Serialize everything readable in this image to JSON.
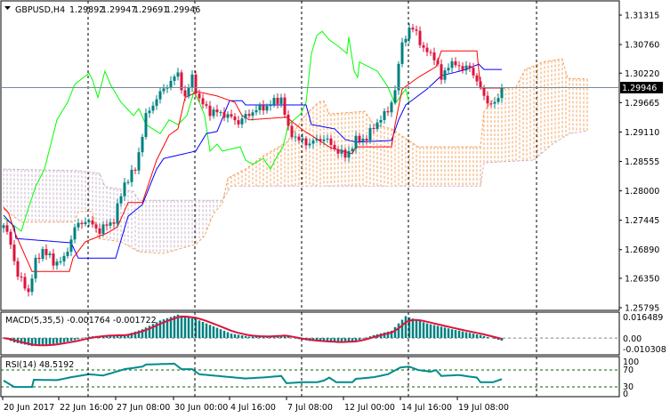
{
  "header": {
    "symbol": "GBPUSD,H4",
    "open": "1.29892",
    "high": "1.29947",
    "low": "1.29691",
    "close": "1.29946",
    "menu_icon": "triangle-down-icon"
  },
  "price_axis": {
    "labels": [
      "1.31315",
      "1.30760",
      "1.30220",
      "1.29665",
      "1.29110",
      "1.28555",
      "1.28000",
      "1.27445",
      "1.26890",
      "1.26350",
      "1.25795"
    ],
    "current": "1.29946"
  },
  "macd": {
    "label": "MACD(5,35,5) -0.001764 -0.001722",
    "axis": [
      "0.016489",
      "0.00",
      "-0.010308"
    ]
  },
  "rsi": {
    "label": "RSI(14) 48.5192",
    "axis": [
      "100",
      "70",
      "30",
      "0"
    ]
  },
  "time_axis": [
    "20 Jun 2017",
    "22 Jun 16:00",
    "27 Jun 08:00",
    "30 Jun 00:00",
    "4 Jul 16:00",
    "7 Jul 08:00",
    "12 Jul 00:00",
    "14 Jul 16:00",
    "19 Jul 08:00"
  ],
  "colors": {
    "bull": "#008080",
    "bear": "#dc143c",
    "tenkan": "#ff0000",
    "kijun": "#0000ff",
    "chikou": "#00ff00",
    "spanA": "#f4a460",
    "spanB": "#d8bfd8",
    "macd_signal": "#dc143c",
    "rsi": "#008b8b",
    "level": "#006400"
  },
  "chart_data": {
    "type": "candlestick",
    "symbol": "GBPUSD",
    "timeframe": "H4",
    "ylim": [
      1.25795,
      1.31315
    ],
    "bars": 141,
    "close_keypoints": [
      [
        0,
        1.2735
      ],
      [
        2,
        1.27
      ],
      [
        4,
        1.264
      ],
      [
        7,
        1.261
      ],
      [
        9,
        1.2665
      ],
      [
        11,
        1.269
      ],
      [
        14,
        1.2665
      ],
      [
        17,
        1.267
      ],
      [
        20,
        1.273
      ],
      [
        23,
        1.2745
      ],
      [
        27,
        1.2725
      ],
      [
        31,
        1.2745
      ],
      [
        34,
        1.2815
      ],
      [
        37,
        1.284
      ],
      [
        40,
        1.294
      ],
      [
        43,
        1.2975
      ],
      [
        46,
        1.3
      ],
      [
        49,
        1.302
      ],
      [
        51,
        1.2975
      ],
      [
        53,
        1.3015
      ],
      [
        55,
        1.297
      ],
      [
        58,
        1.295
      ],
      [
        62,
        1.2945
      ],
      [
        66,
        1.293
      ],
      [
        70,
        1.295
      ],
      [
        74,
        1.296
      ],
      [
        78,
        1.2975
      ],
      [
        80,
        1.2915
      ],
      [
        83,
        1.2895
      ],
      [
        86,
        1.289
      ],
      [
        90,
        1.29
      ],
      [
        93,
        1.288
      ],
      [
        96,
        1.2865
      ],
      [
        99,
        1.2895
      ],
      [
        102,
        1.29
      ],
      [
        105,
        1.293
      ],
      [
        108,
        1.295
      ],
      [
        110,
        1.299
      ],
      [
        112,
        1.308
      ],
      [
        114,
        1.3105
      ],
      [
        116,
        1.31
      ],
      [
        118,
        1.3065
      ],
      [
        121,
        1.3055
      ],
      [
        123,
        1.301
      ],
      [
        125,
        1.304
      ],
      [
        128,
        1.3035
      ],
      [
        131,
        1.303
      ],
      [
        133,
        1.301
      ],
      [
        135,
        1.2975
      ],
      [
        137,
        1.2965
      ],
      [
        139,
        1.2969
      ],
      [
        140,
        1.29946
      ]
    ],
    "tenkan": [
      [
        0,
        1.2769
      ],
      [
        1.5,
        1.2757
      ],
      [
        3,
        1.2724
      ],
      [
        8,
        1.2648
      ],
      [
        18.5,
        1.2648
      ],
      [
        19.5,
        1.2673
      ],
      [
        23,
        1.2704
      ],
      [
        29,
        1.272
      ],
      [
        32,
        1.2732
      ],
      [
        35,
        1.2778
      ],
      [
        39,
        1.2778
      ],
      [
        43,
        1.2858
      ],
      [
        46.5,
        1.2905
      ],
      [
        49,
        1.2917
      ],
      [
        51,
        1.2976
      ],
      [
        54.5,
        1.2987
      ],
      [
        60,
        1.2979
      ],
      [
        65,
        1.2967
      ],
      [
        67,
        1.2942
      ],
      [
        69,
        1.2934
      ],
      [
        79.5,
        1.2939
      ],
      [
        84,
        1.2915
      ],
      [
        92,
        1.2881
      ],
      [
        98,
        1.287
      ],
      [
        99,
        1.2883
      ],
      [
        109,
        1.2883
      ],
      [
        110,
        1.2925
      ],
      [
        112,
        1.2992
      ],
      [
        116.5,
        1.3014
      ],
      [
        121.5,
        1.3034
      ],
      [
        123,
        1.3064
      ],
      [
        133,
        1.3064
      ],
      [
        134,
        1.2994
      ],
      [
        140,
        1.2994
      ]
    ],
    "kijun": [
      [
        0,
        1.2754
      ],
      [
        3,
        1.2732
      ],
      [
        3.5,
        1.271
      ],
      [
        19,
        1.2702
      ],
      [
        21,
        1.2673
      ],
      [
        31.5,
        1.2673
      ],
      [
        33,
        1.2707
      ],
      [
        35,
        1.2752
      ],
      [
        39,
        1.2774
      ],
      [
        43,
        1.2841
      ],
      [
        45,
        1.2861
      ],
      [
        54,
        1.2875
      ],
      [
        57,
        1.2908
      ],
      [
        60,
        1.2912
      ],
      [
        63.5,
        1.297
      ],
      [
        67,
        1.297
      ],
      [
        68,
        1.2962
      ],
      [
        85,
        1.2962
      ],
      [
        86.5,
        1.2925
      ],
      [
        93,
        1.2917
      ],
      [
        96,
        1.2897
      ],
      [
        99,
        1.2892
      ],
      [
        109,
        1.2895
      ],
      [
        111,
        1.2934
      ],
      [
        113,
        1.2962
      ],
      [
        119,
        1.2992
      ],
      [
        123,
        1.3017
      ],
      [
        130,
        1.3029
      ],
      [
        133.5,
        1.3039
      ],
      [
        135,
        1.3029
      ],
      [
        140,
        1.3029
      ]
    ],
    "chikou": [
      [
        0,
        1.2749
      ],
      [
        5,
        1.2724
      ],
      [
        6.5,
        1.2757
      ],
      [
        9,
        1.2808
      ],
      [
        11.5,
        1.2841
      ],
      [
        15,
        1.2934
      ],
      [
        18,
        1.2967
      ],
      [
        20,
        1.3001
      ],
      [
        24,
        1.3022
      ],
      [
        25,
        1.3009
      ],
      [
        26.5,
        1.2976
      ],
      [
        28.5,
        1.3026
      ],
      [
        30,
        1.3001
      ],
      [
        33,
        1.2967
      ],
      [
        36.5,
        1.2942
      ],
      [
        38,
        1.2955
      ],
      [
        40,
        1.2925
      ],
      [
        44,
        1.2908
      ],
      [
        46.5,
        1.2934
      ],
      [
        49,
        1.2925
      ],
      [
        51.5,
        1.2942
      ],
      [
        53.5,
        1.2987
      ],
      [
        55,
        1.2967
      ],
      [
        56.5,
        1.2942
      ],
      [
        58,
        1.2875
      ],
      [
        60,
        1.2888
      ],
      [
        61.5,
        1.2875
      ],
      [
        66.5,
        1.2883
      ],
      [
        68,
        1.2858
      ],
      [
        70,
        1.285
      ],
      [
        73,
        1.2861
      ],
      [
        75,
        1.2841
      ],
      [
        76.5,
        1.2861
      ],
      [
        78.5,
        1.2883
      ],
      [
        80,
        1.2925
      ],
      [
        83.5,
        1.2945
      ],
      [
        85,
        1.2967
      ],
      [
        86.5,
        1.3059
      ],
      [
        88,
        1.3093
      ],
      [
        89.5,
        1.3101
      ],
      [
        91.5,
        1.3085
      ],
      [
        94,
        1.3073
      ],
      [
        96.5,
        1.3059
      ],
      [
        97,
        1.309
      ],
      [
        98.5,
        1.3026
      ],
      [
        99.5,
        1.3014
      ],
      [
        100,
        1.3043
      ],
      [
        105,
        1.3026
      ],
      [
        108,
        1.2996
      ],
      [
        110,
        1.2964
      ],
      [
        113,
        1.2992
      ],
      [
        114,
        1.2964
      ]
    ],
    "span_a": [
      [
        0,
        1.2766
      ],
      [
        5,
        1.2741
      ],
      [
        20,
        1.2741
      ],
      [
        21,
        1.2761
      ],
      [
        25,
        1.2761
      ],
      [
        26.5,
        1.271
      ],
      [
        33,
        1.2704
      ],
      [
        38,
        1.2685
      ],
      [
        45,
        1.2682
      ],
      [
        54,
        1.2699
      ],
      [
        56.5,
        1.2715
      ],
      [
        59,
        1.2757
      ],
      [
        61.5,
        1.2777
      ],
      [
        63,
        1.2824
      ],
      [
        68,
        1.2841
      ],
      [
        73,
        1.2866
      ],
      [
        79.5,
        1.2891
      ],
      [
        85,
        1.2945
      ],
      [
        88.5,
        1.2967
      ],
      [
        90,
        1.297
      ],
      [
        91.5,
        1.2945
      ],
      [
        101.5,
        1.295
      ],
      [
        104,
        1.2925
      ],
      [
        109,
        1.2917
      ],
      [
        116.5,
        1.2883
      ],
      [
        134,
        1.2883
      ],
      [
        135,
        1.295
      ],
      [
        140,
        1.2992
      ],
      [
        144,
        1.2996
      ],
      [
        146.5,
        1.3029
      ],
      [
        151.5,
        1.3043
      ],
      [
        157,
        1.3049
      ],
      [
        158.5,
        1.3012
      ],
      [
        164,
        1.3011
      ]
    ],
    "span_b": [
      [
        0,
        1.2841
      ],
      [
        21,
        1.2838
      ],
      [
        27,
        1.2833
      ],
      [
        28.5,
        1.2808
      ],
      [
        36.5,
        1.2799
      ],
      [
        38,
        1.2782
      ],
      [
        61.5,
        1.2782
      ],
      [
        64,
        1.2809
      ],
      [
        134,
        1.2809
      ],
      [
        135,
        1.2853
      ],
      [
        149,
        1.2858
      ],
      [
        154,
        1.2887
      ],
      [
        159,
        1.2908
      ],
      [
        164,
        1.2913
      ]
    ],
    "macd_keypoints": [
      [
        0,
        0
      ],
      [
        3,
        -0.003
      ],
      [
        8,
        -0.0055
      ],
      [
        12,
        -0.005
      ],
      [
        19,
        -0.002
      ],
      [
        24,
        0.001
      ],
      [
        29,
        0.002
      ],
      [
        34,
        0.002
      ],
      [
        39,
        0.006
      ],
      [
        44,
        0.012
      ],
      [
        49,
        0.016
      ],
      [
        54,
        0.013
      ],
      [
        59,
        0.008
      ],
      [
        64,
        0.003
      ],
      [
        69,
        0.001
      ],
      [
        74,
        0.001
      ],
      [
        79,
        0.002
      ],
      [
        81,
        0
      ],
      [
        86,
        -0.002
      ],
      [
        94,
        -0.003
      ],
      [
        99,
        -0.002
      ],
      [
        104,
        0.002
      ],
      [
        109,
        0.005
      ],
      [
        113,
        0.015
      ],
      [
        119,
        0.01
      ],
      [
        126,
        0.006
      ],
      [
        134,
        0.002
      ],
      [
        140,
        -0.0018
      ]
    ],
    "macd_ylim": [
      -0.010308,
      0.016489
    ],
    "rsi_keypoints": [
      [
        0,
        45
      ],
      [
        3,
        30
      ],
      [
        8,
        30
      ],
      [
        8.5,
        47
      ],
      [
        15,
        46
      ],
      [
        19,
        53
      ],
      [
        24,
        60
      ],
      [
        28,
        57
      ],
      [
        34,
        72
      ],
      [
        39,
        78
      ],
      [
        40,
        83
      ],
      [
        48,
        85
      ],
      [
        50,
        72
      ],
      [
        53,
        72
      ],
      [
        55,
        60
      ],
      [
        64,
        53
      ],
      [
        68,
        50
      ],
      [
        74,
        53
      ],
      [
        78,
        56
      ],
      [
        79.5,
        39
      ],
      [
        84,
        41
      ],
      [
        88,
        41
      ],
      [
        90,
        45
      ],
      [
        91.5,
        52
      ],
      [
        93.5,
        41
      ],
      [
        98,
        41
      ],
      [
        99,
        49
      ],
      [
        104,
        53
      ],
      [
        108,
        60
      ],
      [
        111.5,
        76
      ],
      [
        114,
        78
      ],
      [
        116.5,
        70
      ],
      [
        120,
        66
      ],
      [
        121.5,
        70
      ],
      [
        123,
        56
      ],
      [
        128,
        58
      ],
      [
        133,
        52
      ],
      [
        134,
        41
      ],
      [
        137.5,
        41
      ],
      [
        140,
        48.5
      ]
    ],
    "rsi_levels": [
      70,
      30
    ],
    "xlabels": [
      "20 Jun 2017",
      "22 Jun 16:00",
      "27 Jun 08:00",
      "30 Jun 00:00",
      "4 Jul 16:00",
      "7 Jul 08:00",
      "12 Jul 00:00",
      "14 Jul 16:00",
      "19 Jul 08:00"
    ]
  }
}
